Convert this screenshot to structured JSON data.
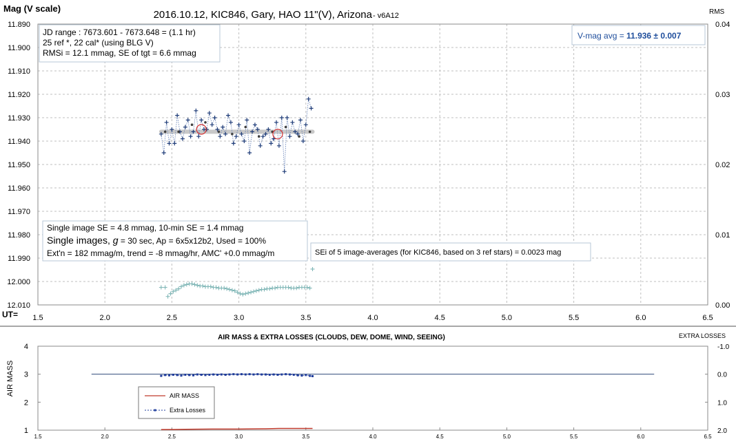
{
  "top_chart": {
    "title": "2016.10.12, KIC846, Gary, HAO 11\"(V), Arizona",
    "version": " - v6A12",
    "ylabel": "Mag (V scale)",
    "y2label": "RMS",
    "xlabel": "UT=",
    "info_box": [
      "JD range : 7673.601 - 7673.648 = (1.1 hr)",
      "25 ref *, 22 cal* (using BLG V)",
      "RMSi = 12.1 mmag, SE of tgt = 6.6 mmag"
    ],
    "avg_box": {
      "label": "V-mag avg = ",
      "value": "11.936",
      "err": "  ± 0.007"
    },
    "single_box": {
      "line1": "Single image SE = 4.8 mmag, 10-min SE = 1.4 mmag",
      "line2_prefix": "Single images, ",
      "line2_g": "g",
      "line2_suffix": " = 30 sec, Ap = 6x5x12b2, Used = 100%",
      "line3": "Ext'n = 182 mmag/m, trend = -8 mmag/hr, AMC' +0.0 mmag/m"
    },
    "sei_box": "SEi of 5 image-averages (for KIC846, based on 3 ref stars) = 0.0023 mag",
    "yticks": [
      "11.890",
      "11.900",
      "11.910",
      "11.920",
      "11.930",
      "11.940",
      "11.950",
      "11.960",
      "11.970",
      "11.980",
      "11.990",
      "12.000",
      "12.010"
    ],
    "y2ticks": [
      "0.04",
      "0.03",
      "0.02",
      "0.01",
      "0.00"
    ],
    "xticks": [
      "1.5",
      "2.0",
      "2.5",
      "3.0",
      "3.5",
      "4.0",
      "4.5",
      "5.0",
      "5.5",
      "6.0",
      "6.5"
    ]
  },
  "bottom_chart": {
    "title": "AIR MASS & EXTRA LOSSES (CLOUDS, DEW, DOME, WIND, SEEING)",
    "ylabel": "AIR MASS",
    "y2label": "EXTRA LOSSES",
    "yticks": [
      "4",
      "3",
      "2",
      "1"
    ],
    "y2ticks": [
      "-1.0",
      "0.0",
      "1.0",
      "2.0"
    ],
    "xticks": [
      "1.5",
      "2.0",
      "2.5",
      "3.0",
      "3.5",
      "4.0",
      "4.5",
      "5.0",
      "5.5",
      "6.0",
      "6.5"
    ],
    "legend": [
      "AIR MASS",
      "Extra Losses"
    ]
  },
  "colors": {
    "mag_points": "#1f3c78",
    "avg_points": "#404040",
    "average_band": "#c8c8c8",
    "rms_points": "#7fb6b6",
    "air_mass": "#c0392b",
    "extra_losses": "#1f3c9c",
    "reference_line": "#2f4a7a",
    "avg_text": "#1f4e9c",
    "grid": "#bfbfbf"
  },
  "chart_data": [
    {
      "type": "scatter",
      "title": "2016.10.12, KIC846, Gary, HAO 11\"(V), Arizona",
      "xlabel": "UT=",
      "ylabel": "Mag (V scale)",
      "y2label": "RMS",
      "xlim": [
        1.5,
        6.5
      ],
      "ylim": [
        11.89,
        12.01
      ],
      "y_inverted": true,
      "y2lim": [
        0.0,
        0.04
      ],
      "grid": true,
      "series": [
        {
          "x": [
            2.42,
            2.44,
            2.46,
            2.48,
            2.5,
            2.52,
            2.54,
            2.56,
            2.58,
            2.6,
            2.62,
            2.64,
            2.66,
            2.68,
            2.7,
            2.72,
            2.74,
            2.76,
            2.78,
            2.8,
            2.82,
            2.84,
            2.86,
            2.88,
            2.9,
            2.92,
            2.94,
            2.96,
            2.98,
            3.0,
            3.02,
            3.04,
            3.06,
            3.08,
            3.1,
            3.12,
            3.14,
            3.16,
            3.18,
            3.2,
            3.22,
            3.24,
            3.26,
            3.28,
            3.3,
            3.32,
            3.34,
            3.36,
            3.38,
            3.4,
            3.42,
            3.44,
            3.46,
            3.48,
            3.5,
            3.52,
            3.54
          ],
          "values": [
            11.937,
            11.945,
            11.932,
            11.941,
            11.935,
            11.941,
            11.929,
            11.936,
            11.939,
            11.934,
            11.931,
            11.938,
            11.936,
            11.927,
            11.938,
            11.931,
            11.935,
            11.935,
            11.928,
            11.933,
            11.93,
            11.935,
            11.938,
            11.934,
            11.937,
            11.929,
            11.932,
            11.941,
            11.938,
            11.933,
            11.937,
            11.94,
            11.931,
            11.945,
            11.936,
            11.933,
            11.935,
            11.942,
            11.938,
            11.937,
            11.935,
            11.941,
            11.939,
            11.932,
            11.942,
            11.93,
            11.953,
            11.93,
            11.938,
            11.932,
            11.936,
            11.937,
            11.931,
            11.94,
            11.933,
            11.922,
            11.926
          ]
        },
        {
          "x": [
            2.45,
            2.55,
            2.65,
            2.75,
            2.85,
            2.95,
            3.05,
            3.15,
            3.25,
            3.35,
            3.45,
            3.53
          ],
          "values": [
            11.936,
            11.936,
            11.933,
            11.932,
            11.936,
            11.937,
            11.934,
            11.938,
            11.936,
            11.934,
            11.938,
            11.936
          ]
        },
        {
          "x": [
            2.42,
            3.55
          ],
          "values": [
            11.936,
            11.936
          ]
        },
        {
          "x": [
            2.72,
            3.29
          ],
          "values": [
            11.935,
            11.937
          ]
        },
        {
          "axis": "y2",
          "x": [
            2.42,
            2.45,
            2.47,
            2.49,
            2.51,
            2.53,
            2.55,
            2.57,
            2.59,
            2.61,
            2.63,
            2.65,
            2.67,
            2.69,
            2.71,
            2.73,
            2.75,
            2.77,
            2.79,
            2.81,
            2.83,
            2.85,
            2.87,
            2.89,
            2.91,
            2.93,
            2.95,
            2.97,
            2.99,
            3.01,
            3.03,
            3.05,
            3.07,
            3.09,
            3.11,
            3.13,
            3.15,
            3.17,
            3.19,
            3.21,
            3.23,
            3.25,
            3.27,
            3.29,
            3.31,
            3.33,
            3.35,
            3.37,
            3.39,
            3.41,
            3.43,
            3.45,
            3.47,
            3.49,
            3.51,
            3.53,
            3.55
          ],
          "values": [
            0.0025,
            0.0025,
            0.0012,
            0.0016,
            0.0019,
            0.0021,
            0.0023,
            0.0026,
            0.0028,
            0.0029,
            0.003,
            0.003,
            0.0029,
            0.0028,
            0.0027,
            0.0027,
            0.0026,
            0.0026,
            0.0026,
            0.0025,
            0.0025,
            0.0024,
            0.0024,
            0.0024,
            0.0023,
            0.0022,
            0.0021,
            0.002,
            0.0018,
            0.0016,
            0.0015,
            0.0016,
            0.0017,
            0.0018,
            0.0019,
            0.002,
            0.0021,
            0.0022,
            0.0022,
            0.0023,
            0.0023,
            0.0024,
            0.0024,
            0.0025,
            0.0025,
            0.0025,
            0.0025,
            0.0025,
            0.0024,
            0.0024,
            0.0024,
            0.0025,
            0.0025,
            0.0025,
            0.0025,
            0.0024,
            0.0051
          ]
        }
      ]
    },
    {
      "type": "line",
      "title": "AIR MASS & EXTRA LOSSES (CLOUDS, DEW, DOME, WIND, SEEING)",
      "ylabel": "AIR MASS",
      "y2label": "EXTRA LOSSES",
      "xlim": [
        1.5,
        6.5
      ],
      "ylim": [
        1,
        4
      ],
      "y2lim": [
        2.0,
        -1.0
      ],
      "grid": false,
      "legend_position": "bottom-left",
      "series": [
        {
          "name": "AIR MASS",
          "x": [
            2.42,
            2.6,
            2.8,
            3.0,
            3.2,
            3.3,
            3.4,
            3.55
          ],
          "values": [
            1.02,
            1.03,
            1.04,
            1.04,
            1.05,
            1.06,
            1.06,
            1.06
          ]
        },
        {
          "name": "Extra Losses",
          "axis": "y2",
          "x": [
            2.42,
            2.45,
            2.48,
            2.51,
            2.54,
            2.57,
            2.6,
            2.63,
            2.66,
            2.69,
            2.72,
            2.75,
            2.78,
            2.81,
            2.84,
            2.87,
            2.9,
            2.93,
            2.96,
            2.99,
            3.02,
            3.05,
            3.08,
            3.11,
            3.14,
            3.17,
            3.2,
            3.23,
            3.26,
            3.29,
            3.32,
            3.35,
            3.38,
            3.41,
            3.44,
            3.47,
            3.5,
            3.53,
            3.55
          ],
          "values": [
            0.06,
            0.03,
            0.04,
            0.02,
            0.03,
            0.05,
            0.02,
            0.03,
            0.04,
            0.01,
            0.02,
            0.03,
            0.02,
            0.01,
            0.02,
            0.01,
            0.02,
            0.01,
            0.0,
            0.01,
            0.0,
            0.01,
            0.0,
            0.01,
            0.0,
            0.01,
            0.01,
            0.02,
            0.01,
            0.02,
            0.01,
            0.0,
            0.01,
            0.02,
            0.04,
            0.05,
            0.03,
            0.06,
            0.07
          ]
        },
        {
          "axis": "y2",
          "x": [
            1.9,
            6.1
          ],
          "values": [
            0.0,
            0.0
          ]
        }
      ]
    }
  ]
}
